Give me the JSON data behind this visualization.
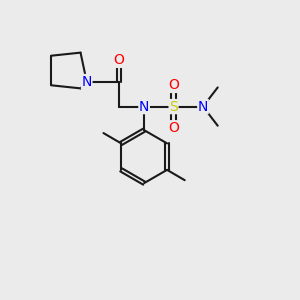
{
  "bg_color": "#ebebeb",
  "bond_color": "#1a1a1a",
  "line_width": 1.5,
  "atom_colors": {
    "N": "#0000ff",
    "O": "#ff0000",
    "S": "#cccc00",
    "C": "#1a1a1a"
  },
  "font_size": 10,
  "font_size_label": 8.5
}
